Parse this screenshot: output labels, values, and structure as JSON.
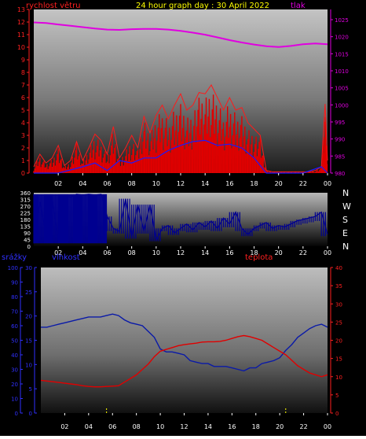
{
  "header": {
    "wind_label": "rychlost větru",
    "title": "24 hour graph day : 30 April 2022",
    "pressure_label": "tlak"
  },
  "lower_header": {
    "rain_label": "srážky",
    "humidity_label": "vlhkost",
    "temp_label": "teplota"
  },
  "colors": {
    "background": "#000000",
    "panel_top": "#bcbcbc",
    "wind": "#ff1a1a",
    "gust": "#e00000",
    "wind_avg": "#1a1aff",
    "pressure": "#e000e0",
    "direction": "#000090",
    "humidity": "#0a1aa8",
    "temperature": "#e00000",
    "rain": "#ffff00",
    "wind_axis": "#ff2020",
    "pressure_axis": "#e000e0",
    "direction_axis": "#ffffff",
    "title_color": "#ffff00",
    "rain_axis": "#3030ff",
    "humidity_axis": "#3030ff",
    "temp_axis": "#ff2020"
  },
  "chart_data": [
    {
      "id": "wind-pressure",
      "type": "line",
      "title": "24 hour graph day : 30 April 2022",
      "xlabel": "",
      "x_ticks": [
        "02",
        "04",
        "06",
        "08",
        "10",
        "12",
        "14",
        "16",
        "18",
        "20",
        "22",
        "00"
      ],
      "y_left": {
        "label": "rychlost větru",
        "ylim": [
          0,
          13
        ],
        "ticks": [
          "0",
          "1",
          "2",
          "3",
          "4",
          "5",
          "6",
          "7",
          "8",
          "9",
          "10",
          "11",
          "12",
          "13"
        ]
      },
      "y_right": {
        "label": "tlak",
        "ylim": [
          980,
          1028
        ],
        "ticks": [
          "980",
          "985",
          "990",
          "995",
          "1000",
          "1005",
          "1010",
          "1015",
          "1020",
          "1025"
        ]
      },
      "series": [
        {
          "name": "tlak",
          "axis": "right",
          "x": [
            0,
            1,
            2,
            3,
            4,
            5,
            6,
            7,
            8,
            9,
            10,
            11,
            12,
            13,
            14,
            15,
            16,
            17,
            18,
            19,
            20,
            21,
            22,
            23,
            24
          ],
          "values": [
            1024.2,
            1024.0,
            1023.6,
            1023.2,
            1022.8,
            1022.4,
            1022.1,
            1022.0,
            1022.2,
            1022.3,
            1022.3,
            1022.1,
            1021.7,
            1021.2,
            1020.6,
            1019.8,
            1019.0,
            1018.3,
            1017.7,
            1017.2,
            1017.0,
            1017.3,
            1017.8,
            1018.0,
            1017.8
          ]
        },
        {
          "name": "",
          "axis": "left",
          "x": [
            0,
            0.5,
            1,
            1.5,
            2,
            2.5,
            3,
            3.5,
            4,
            4.5,
            5,
            5.5,
            6,
            6.5,
            7,
            7.5,
            8,
            8.5,
            9,
            9.5,
            10,
            10.5,
            11,
            11.5,
            12,
            12.5,
            13,
            13.5,
            14,
            14.5,
            15,
            15.5,
            16,
            16.5,
            17,
            17.5,
            18,
            18.5,
            19,
            19.5,
            20,
            20.5,
            21,
            21.5,
            22,
            22.5,
            23,
            23.5,
            23.8,
            24
          ],
          "values": [
            0.5,
            1.5,
            0.8,
            1.2,
            2.2,
            0.6,
            1.0,
            2.5,
            1.0,
            2.0,
            3.1,
            2.6,
            1.5,
            3.7,
            1.2,
            2.0,
            3.0,
            2.0,
            4.5,
            3.2,
            4.6,
            5.4,
            4.3,
            5.4,
            6.3,
            5.0,
            5.4,
            6.4,
            6.3,
            7.0,
            6.0,
            5.0,
            6.0,
            5.0,
            5.2,
            4.0,
            3.5,
            3.0,
            0.2,
            0.1,
            0.1,
            0.1,
            0.1,
            0.1,
            0.1,
            0.1,
            0.2,
            0.5,
            5.5,
            1.0
          ]
        },
        {
          "name": "",
          "axis": "left",
          "x": [
            0,
            2,
            4,
            5,
            6,
            7,
            8,
            9,
            10,
            11,
            12,
            13,
            14,
            15,
            16,
            17,
            18,
            19,
            20,
            22,
            23.5,
            24
          ],
          "values": [
            0.0,
            0.0,
            0.5,
            0.8,
            0.2,
            1.0,
            0.8,
            1.2,
            1.2,
            1.8,
            2.2,
            2.5,
            2.6,
            2.2,
            2.3,
            2.0,
            1.2,
            0.0,
            0.0,
            0.0,
            0.5,
            0.0
          ]
        }
      ]
    },
    {
      "id": "wind-direction",
      "type": "line",
      "title": "",
      "x_ticks": [
        "02",
        "04",
        "06",
        "08",
        "10",
        "12",
        "14",
        "16",
        "18",
        "20",
        "22",
        "00"
      ],
      "y_left": {
        "label": "",
        "ylim": [
          0,
          360
        ],
        "ticks": [
          "0",
          "45",
          "90",
          "135",
          "180",
          "225",
          "270",
          "315",
          "360"
        ]
      },
      "y_right": {
        "label": "",
        "ticks": [
          "N",
          "W",
          "S",
          "E",
          "N"
        ]
      },
      "series": [
        {
          "name": "",
          "x": [
            0,
            0.5,
            1,
            1.5,
            2,
            2.5,
            3,
            3.5,
            4,
            4.5,
            5,
            5.5,
            6,
            6.5,
            7,
            7.5,
            8,
            8.5,
            9,
            9.5,
            10,
            10.5,
            11,
            11.5,
            12,
            12.5,
            13,
            13.5,
            14,
            14.5,
            15,
            15.5,
            16,
            16.5,
            17,
            17.5,
            18,
            18.5,
            19,
            19.5,
            20,
            20.5,
            21,
            21.5,
            22,
            22.5,
            23,
            23.5,
            24
          ],
          "values": [
            20,
            300,
            60,
            330,
            40,
            340,
            330,
            350,
            345,
            350,
            345,
            350,
            200,
            120,
            100,
            320,
            60,
            280,
            100,
            280,
            40,
            120,
            140,
            90,
            120,
            150,
            110,
            160,
            130,
            170,
            120,
            190,
            150,
            230,
            120,
            80,
            120,
            140,
            160,
            120,
            140,
            130,
            150,
            170,
            180,
            190,
            200,
            230,
            80
          ]
        }
      ]
    },
    {
      "id": "humidity-temperature-rain",
      "type": "line",
      "title": "",
      "x_ticks": [
        "02",
        "04",
        "06",
        "08",
        "10",
        "12",
        "14",
        "16",
        "18",
        "20",
        "22",
        "00"
      ],
      "y_left_outer": {
        "label": "srážky",
        "ylim": [
          0,
          100
        ],
        "ticks": [
          "0",
          "10",
          "20",
          "30",
          "40",
          "50",
          "60",
          "70",
          "80",
          "90",
          "100"
        ]
      },
      "y_left_inner": {
        "label": "vlhkost",
        "ylim": [
          0,
          30
        ],
        "ticks": [
          "0",
          "5",
          "10",
          "15",
          "20",
          "25",
          "30"
        ]
      },
      "y_right": {
        "label": "teplota",
        "ylim": [
          0,
          40
        ],
        "ticks": [
          "0",
          "5",
          "10",
          "15",
          "20",
          "25",
          "30",
          "35",
          "40"
        ]
      },
      "series": [
        {
          "name": "vlhkost",
          "axis": "humidity",
          "x": [
            0,
            0.5,
            1,
            1.5,
            2,
            2.5,
            3,
            3.5,
            4,
            4.5,
            5,
            5.5,
            6,
            6.5,
            7,
            7.5,
            8,
            8.5,
            9,
            9.5,
            10,
            10.5,
            11,
            11.5,
            12,
            12.5,
            13,
            13.5,
            14,
            14.5,
            15,
            15.5,
            16,
            16.5,
            17,
            17.5,
            18,
            18.5,
            19,
            19.5,
            20,
            20.5,
            21,
            21.5,
            22,
            22.5,
            23,
            23.5,
            24
          ],
          "values": [
            59,
            59,
            60,
            61,
            62,
            63,
            64,
            65,
            66,
            66,
            66,
            67,
            68,
            67,
            64,
            62,
            61,
            60,
            56,
            52,
            44,
            42,
            42,
            41,
            40,
            36,
            35,
            34,
            34,
            32,
            32,
            32,
            31,
            30,
            29,
            31,
            31,
            34,
            35,
            36,
            38,
            43,
            47,
            52,
            55,
            58,
            60,
            61,
            59
          ]
        },
        {
          "name": "teplota",
          "axis": "temp",
          "x": [
            0,
            0.5,
            1,
            1.5,
            2,
            2.5,
            3,
            3.5,
            4,
            4.5,
            5,
            5.5,
            6,
            6.5,
            7,
            7.5,
            8,
            8.5,
            9,
            9.5,
            10,
            10.5,
            11,
            11.5,
            12,
            12.5,
            13,
            13.5,
            14,
            14.5,
            15,
            15.5,
            16,
            16.5,
            17,
            17.5,
            18,
            18.5,
            19,
            19.5,
            20,
            20.5,
            21,
            21.5,
            22,
            22.5,
            23,
            23.5,
            24
          ],
          "values": [
            9.0,
            8.8,
            8.6,
            8.4,
            8.2,
            8.0,
            7.8,
            7.5,
            7.3,
            7.2,
            7.2,
            7.3,
            7.4,
            7.5,
            8.5,
            9.5,
            10.5,
            12.0,
            13.5,
            15.5,
            17.0,
            17.5,
            18.0,
            18.5,
            18.8,
            19.0,
            19.2,
            19.5,
            19.6,
            19.6,
            19.7,
            20.0,
            20.5,
            21.0,
            21.3,
            21.0,
            20.5,
            20.0,
            19.0,
            18.0,
            17.0,
            16.0,
            14.5,
            13.0,
            12.0,
            11.0,
            10.5,
            10.0,
            10.5
          ]
        },
        {
          "name": "",
          "axis": "rain",
          "type": "bar",
          "x": [
            5.5,
            20.5
          ],
          "values": [
            4,
            4
          ]
        }
      ]
    }
  ]
}
